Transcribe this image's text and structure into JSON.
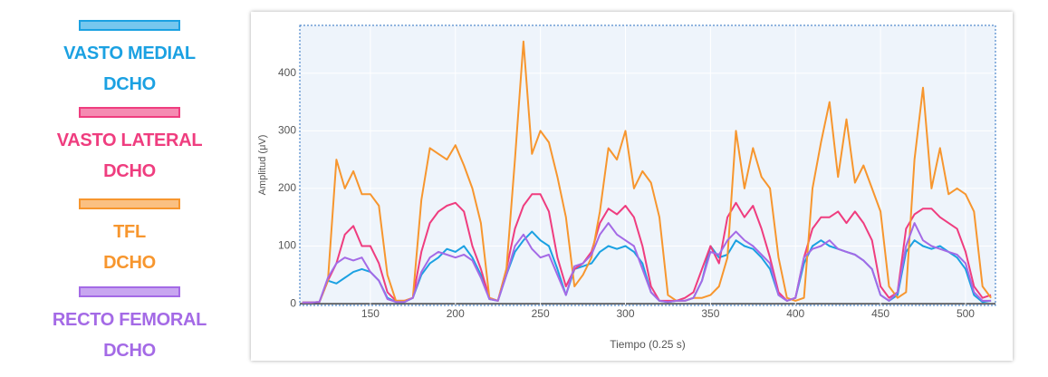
{
  "chart_data": {
    "type": "line",
    "x_label": "Tiempo (0.25 s)",
    "y_label": "Amplitud (μV)",
    "x": [
      110,
      115,
      120,
      125,
      130,
      135,
      140,
      145,
      150,
      155,
      160,
      165,
      170,
      175,
      180,
      185,
      190,
      195,
      200,
      205,
      210,
      215,
      220,
      225,
      230,
      235,
      240,
      245,
      250,
      255,
      260,
      265,
      270,
      275,
      280,
      285,
      290,
      295,
      300,
      305,
      310,
      315,
      320,
      325,
      330,
      335,
      340,
      345,
      350,
      355,
      360,
      365,
      370,
      375,
      380,
      385,
      390,
      395,
      400,
      405,
      410,
      415,
      420,
      425,
      430,
      435,
      440,
      445,
      450,
      455,
      460,
      465,
      470,
      475,
      480,
      485,
      490,
      495,
      500,
      505,
      510,
      515
    ],
    "series": [
      {
        "name": "VASTO MEDIAL\nDCHO",
        "color": "#1ba1e2",
        "values": [
          2,
          2,
          3,
          40,
          35,
          45,
          55,
          60,
          55,
          40,
          10,
          3,
          3,
          10,
          50,
          70,
          80,
          95,
          90,
          100,
          80,
          50,
          8,
          5,
          50,
          90,
          110,
          125,
          110,
          100,
          60,
          15,
          60,
          65,
          70,
          90,
          100,
          95,
          100,
          90,
          70,
          20,
          5,
          3,
          5,
          5,
          10,
          40,
          100,
          80,
          85,
          110,
          100,
          95,
          80,
          60,
          15,
          5,
          10,
          70,
          100,
          110,
          100,
          95,
          90,
          85,
          75,
          60,
          15,
          5,
          15,
          90,
          110,
          100,
          95,
          100,
          90,
          80,
          60,
          15,
          3,
          5
        ]
      },
      {
        "name": "VASTO LATERAL\nDCHO",
        "color": "#ef3d7f",
        "values": [
          2,
          2,
          3,
          40,
          70,
          120,
          135,
          100,
          100,
          70,
          20,
          5,
          5,
          10,
          90,
          140,
          160,
          170,
          175,
          160,
          100,
          60,
          10,
          5,
          60,
          130,
          170,
          190,
          190,
          160,
          80,
          30,
          60,
          70,
          90,
          140,
          165,
          155,
          170,
          150,
          100,
          30,
          5,
          5,
          5,
          10,
          20,
          60,
          100,
          70,
          150,
          175,
          150,
          170,
          130,
          80,
          20,
          5,
          10,
          80,
          130,
          150,
          150,
          160,
          140,
          160,
          140,
          110,
          30,
          10,
          20,
          130,
          155,
          165,
          165,
          150,
          140,
          130,
          90,
          30,
          10,
          15
        ]
      },
      {
        "name": "TFL\nDCHO",
        "color": "#f7962e",
        "values": [
          2,
          2,
          3,
          40,
          250,
          200,
          230,
          190,
          190,
          170,
          50,
          5,
          5,
          10,
          180,
          270,
          260,
          250,
          275,
          240,
          200,
          140,
          10,
          5,
          60,
          250,
          455,
          260,
          300,
          280,
          220,
          150,
          30,
          50,
          80,
          160,
          270,
          250,
          300,
          200,
          230,
          210,
          150,
          15,
          5,
          5,
          10,
          10,
          15,
          30,
          80,
          300,
          200,
          270,
          220,
          200,
          80,
          10,
          5,
          10,
          200,
          280,
          350,
          220,
          320,
          210,
          240,
          200,
          160,
          30,
          10,
          20,
          250,
          375,
          200,
          270,
          190,
          200,
          190,
          160,
          30,
          10
        ]
      },
      {
        "name": "RECTO FEMORAL\nDCHO",
        "color": "#a46ae6",
        "values": [
          2,
          2,
          3,
          45,
          70,
          80,
          75,
          80,
          55,
          40,
          8,
          3,
          3,
          10,
          55,
          80,
          90,
          85,
          80,
          85,
          75,
          45,
          8,
          5,
          50,
          100,
          120,
          95,
          80,
          85,
          50,
          15,
          65,
          70,
          85,
          120,
          140,
          120,
          110,
          100,
          60,
          20,
          5,
          3,
          5,
          5,
          10,
          40,
          90,
          85,
          110,
          125,
          110,
          100,
          85,
          70,
          15,
          5,
          10,
          80,
          95,
          100,
          110,
          95,
          90,
          85,
          75,
          60,
          15,
          5,
          20,
          100,
          140,
          110,
          100,
          95,
          90,
          85,
          70,
          20,
          5,
          5
        ]
      }
    ],
    "xlim": [
      108.5,
      517.6
    ],
    "ylim": [
      -3,
      483
    ],
    "xticks": [
      150,
      200,
      250,
      300,
      350,
      400,
      450,
      500
    ],
    "yticks": [
      0,
      100,
      200,
      300,
      400
    ],
    "grid": true
  }
}
